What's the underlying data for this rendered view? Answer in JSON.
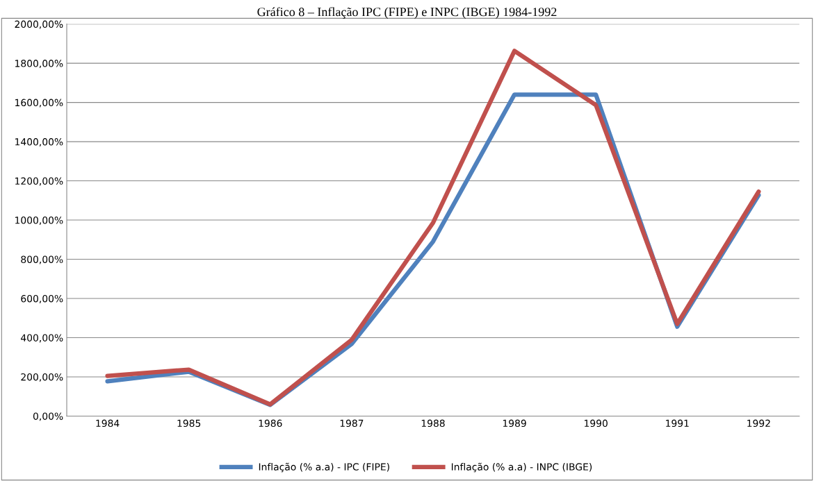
{
  "chart_data": {
    "type": "line",
    "title": "Gráfico 8 – Inflação IPC (FIPE) e INPC (IBGE) 1984-1992",
    "categories": [
      "1984",
      "1985",
      "1986",
      "1987",
      "1988",
      "1989",
      "1990",
      "1991",
      "1992"
    ],
    "series": [
      {
        "name": "Inflação (% a.a) - IPC (FIPE)",
        "color": "#4f81bd",
        "values": [
          177,
          226,
          57,
          368,
          890,
          1640,
          1640,
          456,
          1127
        ]
      },
      {
        "name": "Inflação (% a.a) - INPC (IBGE)",
        "color": "#c0504d",
        "values": [
          205,
          237,
          60,
          389,
          986,
          1863,
          1587,
          470,
          1145
        ]
      }
    ],
    "ylim": [
      0,
      2000
    ],
    "yticks": [
      {
        "value": 0,
        "label": "0,00%"
      },
      {
        "value": 200,
        "label": "200,00%"
      },
      {
        "value": 400,
        "label": "400,00%"
      },
      {
        "value": 600,
        "label": "600,00%"
      },
      {
        "value": 800,
        "label": "800,00%"
      },
      {
        "value": 1000,
        "label": "1000,00%"
      },
      {
        "value": 1200,
        "label": "1200,00%"
      },
      {
        "value": 1400,
        "label": "1400,00%"
      },
      {
        "value": 1600,
        "label": "1600,00%"
      },
      {
        "value": 1800,
        "label": "1800,00%"
      },
      {
        "value": 2000,
        "label": "2000,00%"
      }
    ],
    "grid": "y",
    "legend": "bottom",
    "marker": "none",
    "line_style": "solid"
  }
}
